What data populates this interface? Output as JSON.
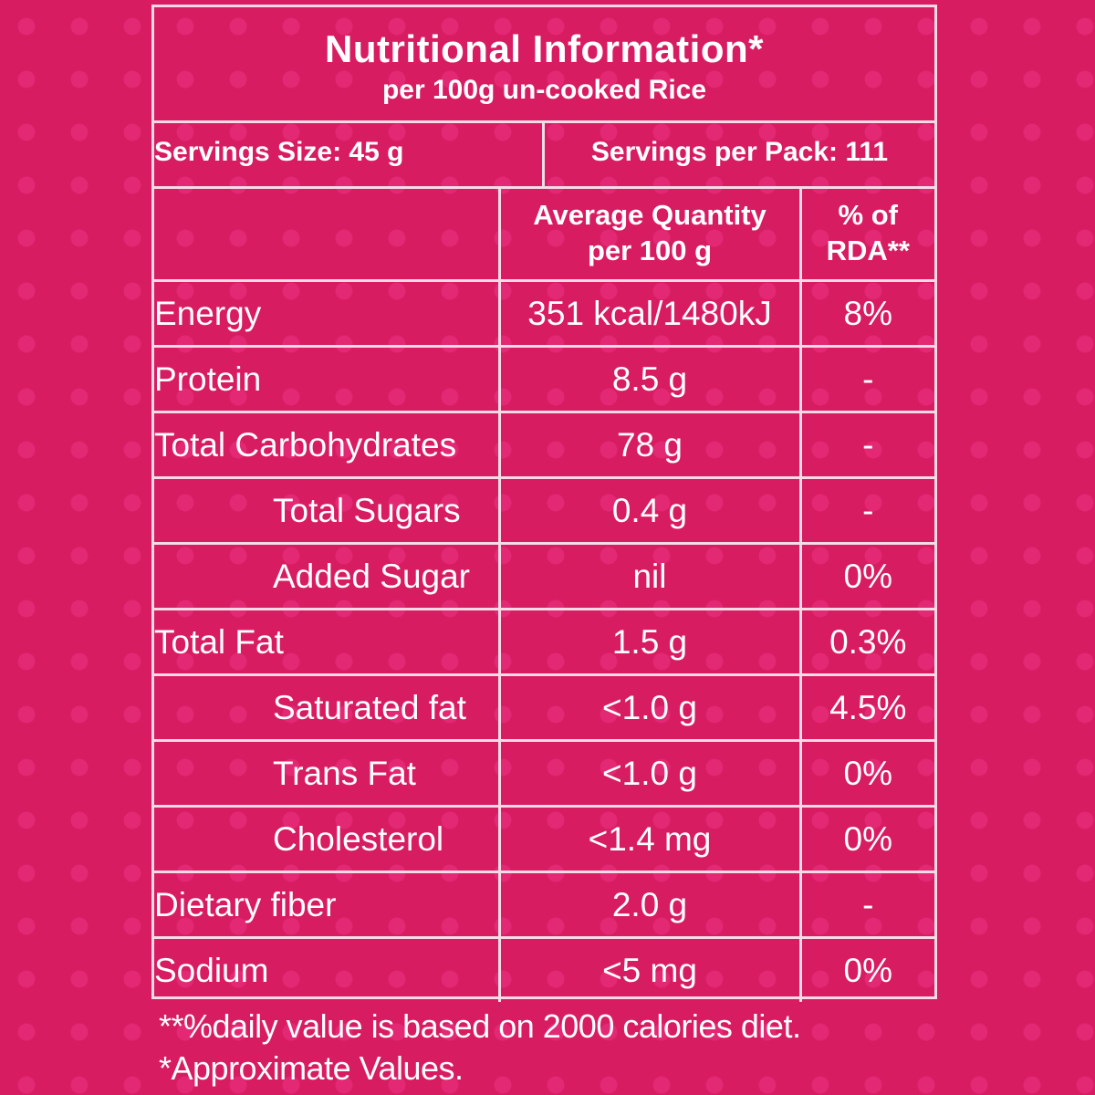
{
  "header": {
    "title": "Nutritional Information*",
    "subtitle": "per 100g un-cooked Rice"
  },
  "servings": {
    "size": "Servings Size: 45 g",
    "per_pack": "Servings per Pack: 111"
  },
  "table": {
    "col_quantity_line1": "Average Quantity",
    "col_quantity_line2": "per 100 g",
    "col_rda_line1": "% of",
    "col_rda_line2": "RDA**",
    "rows": [
      {
        "name": "Energy",
        "value": "351 kcal/1480kJ",
        "rda": "8%"
      },
      {
        "name": "Protein",
        "value": "8.5 g",
        "rda": "-"
      },
      {
        "name": "Total Carbohydrates",
        "value": "78 g",
        "rda": "-"
      },
      {
        "name": "Total Sugars",
        "value": "0.4 g",
        "rda": "-"
      },
      {
        "name": "Added Sugar",
        "value": "nil",
        "rda": "0%"
      },
      {
        "name": "Total Fat",
        "value": "1.5 g",
        "rda": "0.3%"
      },
      {
        "name": "Saturated fat",
        "value": "<1.0 g",
        "rda": "4.5%"
      },
      {
        "name": "Trans Fat",
        "value": "<1.0 g",
        "rda": "0%"
      },
      {
        "name": "Cholesterol",
        "value": "<1.4 mg",
        "rda": "0%"
      },
      {
        "name": "Dietary fiber",
        "value": "2.0 g",
        "rda": "-"
      },
      {
        "name": "Sodium",
        "value": "<5 mg",
        "rda": "0%"
      }
    ]
  },
  "footer": {
    "note1": "**%daily value is based on 2000 calories diet.",
    "note2": "*Approximate Values."
  },
  "colors": {
    "background": "#d81c62",
    "border": "#f4dbe6",
    "text": "#ffffff"
  }
}
